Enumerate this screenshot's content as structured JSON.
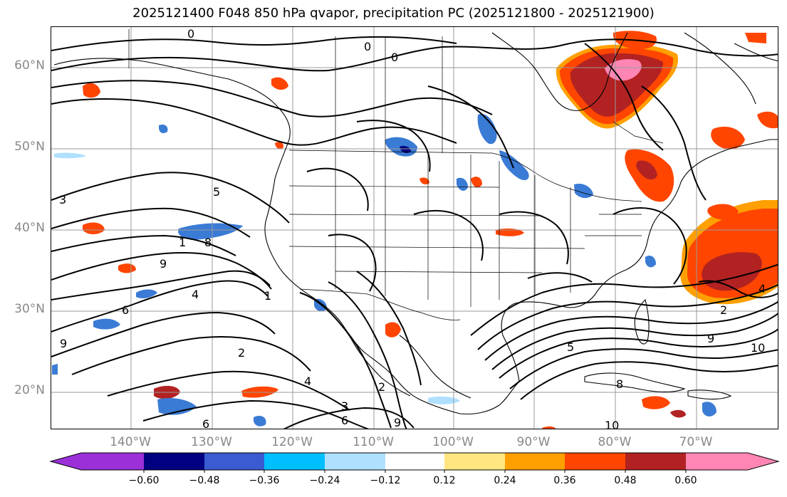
{
  "title": "2025121400 F048 850 hPa qvapor, precipitation PC (2025121800 - 2025121900)",
  "lat_labels": [
    "60°N",
    "50°N",
    "40°N",
    "30°N",
    "20°N"
  ],
  "lon_labels": [
    "140°W",
    "130°W",
    "120°W",
    "110°W",
    "100°W",
    "90°W",
    "80°W",
    "70°W"
  ],
  "contour_labels": [
    "0",
    "0",
    "0",
    "3",
    "5",
    "1",
    "8",
    "9",
    "6",
    "4",
    "1",
    "9",
    "2",
    "4",
    "3",
    "6",
    "2",
    "5",
    "9",
    "10",
    "2",
    "8",
    "4",
    "10",
    "9",
    "6"
  ],
  "colorbar": {
    "tick_labels": [
      "−0.60",
      "−0.48",
      "−0.36",
      "−0.24",
      "−0.12",
      "0.12",
      "0.24",
      "0.36",
      "0.48",
      "0.60"
    ],
    "colors": [
      "#9b30d9",
      "#000080",
      "#3a5bd1",
      "#00bfff",
      "#b0e0ff",
      "#ffffff",
      "#ffe680",
      "#ffa000",
      "#ff4500",
      "#b22222",
      "#ff86b4"
    ]
  },
  "colors": {
    "contour": "#000000",
    "boundary": "#000000",
    "grid": "#9a9a9a",
    "neg_light": "#b0e0ff",
    "neg_mid": "#3a7bd5",
    "neg_dark": "#000080",
    "pos_yellow": "#ffe680",
    "pos_orange": "#ffa000",
    "pos_red": "#ff4500",
    "pos_darkred": "#b22222",
    "pos_pink": "#ff86b4"
  }
}
